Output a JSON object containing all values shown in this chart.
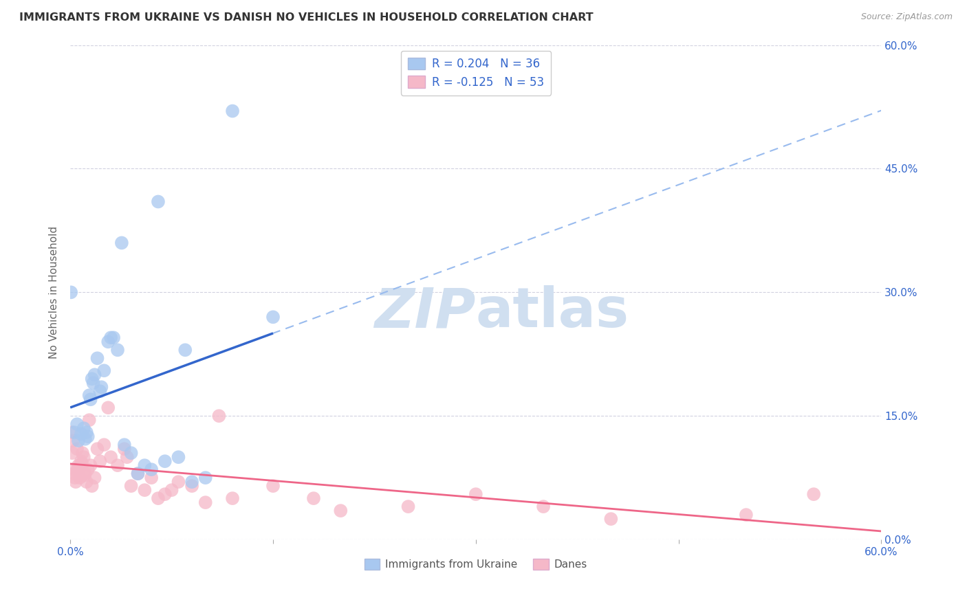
{
  "title": "IMMIGRANTS FROM UKRAINE VS DANISH NO VEHICLES IN HOUSEHOLD CORRELATION CHART",
  "source": "Source: ZipAtlas.com",
  "ylabel": "No Vehicles in Household",
  "ytick_vals": [
    0,
    15,
    30,
    45,
    60
  ],
  "xtick_vals": [
    0,
    15,
    30,
    45,
    60
  ],
  "legend_blue_r": "0.204",
  "legend_blue_n": "36",
  "legend_pink_r": "-0.125",
  "legend_pink_n": "53",
  "legend_label_blue": "Immigrants from Ukraine",
  "legend_label_pink": "Danes",
  "blue_color": "#A8C8F0",
  "pink_color": "#F5B8C8",
  "trendline_blue": "#3366CC",
  "trendline_pink": "#EE6688",
  "dashed_color": "#99BBEE",
  "watermark_color": "#D0DFF0",
  "blue_scatter_x": [
    0.05,
    0.5,
    1.0,
    1.2,
    1.3,
    1.5,
    1.7,
    1.8,
    2.0,
    2.2,
    2.5,
    2.8,
    3.0,
    3.5,
    4.0,
    4.5,
    5.0,
    5.5,
    6.0,
    7.0,
    8.0,
    9.0,
    10.0,
    3.2,
    0.3,
    0.6,
    0.8,
    1.1,
    1.4,
    1.6,
    2.3,
    3.8,
    6.5,
    8.5,
    12.0,
    15.0
  ],
  "blue_scatter_y": [
    30.0,
    14.0,
    13.5,
    13.0,
    12.5,
    17.0,
    19.0,
    20.0,
    22.0,
    18.0,
    20.5,
    24.0,
    24.5,
    23.0,
    11.5,
    10.5,
    8.0,
    9.0,
    8.5,
    9.5,
    10.0,
    7.0,
    7.5,
    24.5,
    13.0,
    12.0,
    12.8,
    12.2,
    17.5,
    19.5,
    18.5,
    36.0,
    41.0,
    23.0,
    52.0,
    27.0
  ],
  "pink_scatter_x": [
    0.1,
    0.2,
    0.3,
    0.4,
    0.5,
    0.6,
    0.7,
    0.8,
    0.9,
    1.0,
    1.1,
    1.2,
    1.3,
    1.5,
    1.6,
    1.8,
    2.0,
    2.2,
    2.5,
    3.0,
    3.5,
    4.0,
    4.5,
    5.0,
    5.5,
    6.0,
    6.5,
    7.0,
    7.5,
    8.0,
    9.0,
    10.0,
    12.0,
    15.0,
    20.0,
    25.0,
    30.0,
    35.0,
    40.0,
    50.0,
    55.0,
    0.15,
    0.25,
    0.35,
    0.55,
    0.65,
    0.85,
    1.05,
    1.4,
    2.8,
    4.2,
    11.0,
    18.0
  ],
  "pink_scatter_y": [
    13.0,
    12.0,
    8.5,
    7.0,
    11.0,
    9.0,
    7.5,
    9.5,
    10.5,
    10.0,
    8.0,
    7.0,
    8.5,
    9.0,
    6.5,
    7.5,
    11.0,
    9.5,
    11.5,
    10.0,
    9.0,
    11.0,
    6.5,
    8.0,
    6.0,
    7.5,
    5.0,
    5.5,
    6.0,
    7.0,
    6.5,
    4.5,
    5.0,
    6.5,
    3.5,
    4.0,
    5.5,
    4.0,
    2.5,
    3.0,
    5.5,
    10.5,
    8.0,
    7.5,
    8.5,
    8.8,
    9.2,
    7.8,
    14.5,
    16.0,
    10.0,
    15.0,
    5.0
  ]
}
